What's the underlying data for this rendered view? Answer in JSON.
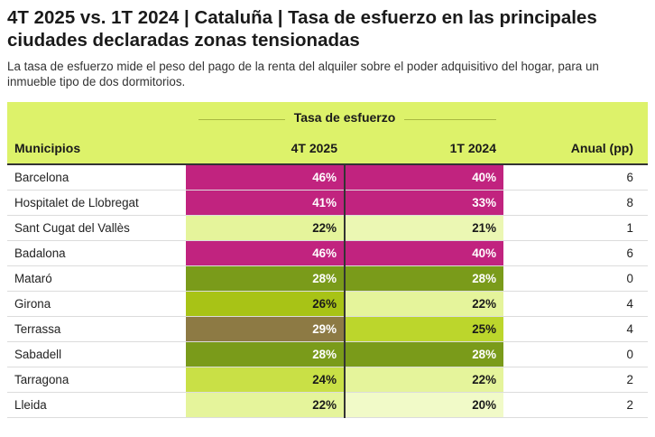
{
  "title": "4T 2025 vs. 1T 2024 | Cataluña | Tasa de esfuerzo en las principales ciudades declaradas zonas tensionadas",
  "subtitle": "La tasa de esfuerzo mide el peso del pago de la renta del alquiler sobre el poder adquisitivo del hogar, para un inmueble tipo de dos dormitorios.",
  "colors": {
    "header_bg": "#ddf26a",
    "very_high": "#c1237f",
    "olive_brown": "#8d7a44",
    "dark_green": "#7a9b1a",
    "green": "#a8c316",
    "lime": "#c3dc3a",
    "pale_lime": "#e5f49b",
    "very_pale": "#f1fac8"
  },
  "chart_data": {
    "type": "table",
    "group_header": "Tasa de esfuerzo",
    "columns": [
      "Municipios",
      "4T 2025",
      "1T 2024",
      "Anual (pp)"
    ],
    "rows": [
      {
        "municipio": "Barcelona",
        "q4_2025": "46%",
        "q1_2024": "40%",
        "anual": "6",
        "c1": "#c1237f",
        "c2": "#c1237f",
        "t1": "dark",
        "t2": "dark"
      },
      {
        "municipio": "Hospitalet de Llobregat",
        "q4_2025": "41%",
        "q1_2024": "33%",
        "anual": "8",
        "c1": "#c1237f",
        "c2": "#c1237f",
        "t1": "dark",
        "t2": "dark"
      },
      {
        "municipio": "Sant Cugat del Vallès",
        "q4_2025": "22%",
        "q1_2024": "21%",
        "anual": "1",
        "c1": "#e5f49b",
        "c2": "#ebf7b3",
        "t1": "light",
        "t2": "light"
      },
      {
        "municipio": "Badalona",
        "q4_2025": "46%",
        "q1_2024": "40%",
        "anual": "6",
        "c1": "#c1237f",
        "c2": "#c1237f",
        "t1": "dark",
        "t2": "dark"
      },
      {
        "municipio": "Mataró",
        "q4_2025": "28%",
        "q1_2024": "28%",
        "anual": "0",
        "c1": "#7a9b1a",
        "c2": "#7a9b1a",
        "t1": "dark",
        "t2": "dark"
      },
      {
        "municipio": "Girona",
        "q4_2025": "26%",
        "q1_2024": "22%",
        "anual": "4",
        "c1": "#a8c316",
        "c2": "#e5f49b",
        "t1": "light",
        "t2": "light"
      },
      {
        "municipio": "Terrassa",
        "q4_2025": "29%",
        "q1_2024": "25%",
        "anual": "4",
        "c1": "#8d7a44",
        "c2": "#bcd62c",
        "t1": "dark",
        "t2": "light"
      },
      {
        "municipio": "Sabadell",
        "q4_2025": "28%",
        "q1_2024": "28%",
        "anual": "0",
        "c1": "#7a9b1a",
        "c2": "#7a9b1a",
        "t1": "dark",
        "t2": "dark"
      },
      {
        "municipio": "Tarragona",
        "q4_2025": "24%",
        "q1_2024": "22%",
        "anual": "2",
        "c1": "#c9e046",
        "c2": "#e5f49b",
        "t1": "light",
        "t2": "light"
      },
      {
        "municipio": "Lleida",
        "q4_2025": "22%",
        "q1_2024": "20%",
        "anual": "2",
        "c1": "#e5f49b",
        "c2": "#f1fac8",
        "t1": "light",
        "t2": "light"
      }
    ]
  }
}
